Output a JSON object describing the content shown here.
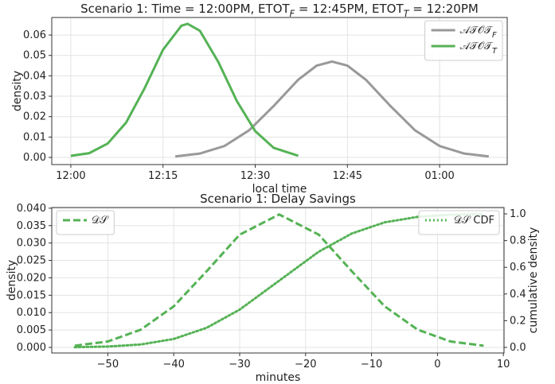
{
  "chart_data": [
    {
      "type": "line",
      "title": "Scenario 1: Time = 12:00PM, ETOT_F = 12:45PM, ETOT_T = 12:20PM",
      "xlabel": "local time",
      "ylabel": "density",
      "xlim": [
        -3.1,
        71
      ],
      "ylim": [
        -0.0035,
        0.0686
      ],
      "xticks": [
        {
          "value": 0,
          "label": "12:00"
        },
        {
          "value": 15,
          "label": "12:15"
        },
        {
          "value": 30,
          "label": "12:30"
        },
        {
          "value": 45,
          "label": "12:45"
        },
        {
          "value": 60,
          "label": "01:00"
        }
      ],
      "yticks": [
        {
          "value": 0,
          "label": "0.00"
        },
        0.01,
        0.02,
        0.03,
        0.04,
        0.05,
        0.06
      ],
      "grid": true,
      "legend": "upper right",
      "series": [
        {
          "name": "𝒜𝒯𝒪𝒯_F",
          "color": "#999999",
          "linestyle": "solid",
          "x": [
            17,
            21,
            25,
            29,
            33,
            37,
            40,
            42.5,
            45,
            48,
            52,
            56,
            60,
            64,
            68
          ],
          "values": [
            0.0005,
            0.0019,
            0.0056,
            0.0133,
            0.0252,
            0.0381,
            0.045,
            0.047,
            0.045,
            0.0381,
            0.0252,
            0.0133,
            0.0056,
            0.0019,
            0.0005
          ]
        },
        {
          "name": "𝒜𝒯𝒪𝒯_T",
          "color": "#55b255",
          "linestyle": "solid",
          "x": [
            0,
            3,
            6,
            9,
            12,
            15,
            18,
            19,
            21,
            24,
            27,
            30,
            33,
            37
          ],
          "values": [
            0.0008,
            0.0021,
            0.0068,
            0.0171,
            0.0339,
            0.0528,
            0.0646,
            0.0655,
            0.0621,
            0.0468,
            0.0277,
            0.0129,
            0.0047,
            0.0008
          ]
        }
      ]
    },
    {
      "type": "line",
      "title": "Scenario 1: Delay Savings",
      "xlabel": "minutes",
      "ylabel": "density",
      "y2label": "cumulative density",
      "xlim": [
        -58.5,
        10.1
      ],
      "ylim": [
        -0.0016,
        0.0402
      ],
      "y2lim": [
        -0.042,
        1.048
      ],
      "xticks": [
        {
          "value": -50,
          "label": "−50"
        },
        {
          "value": -40,
          "label": "−40"
        },
        {
          "value": -30,
          "label": "−30"
        },
        {
          "value": -20,
          "label": "−20"
        },
        {
          "value": -10,
          "label": "−10"
        },
        0,
        10
      ],
      "yticks": [
        {
          "value": 0,
          "label": "0.000"
        },
        {
          "value": 0.005,
          "label": "0.005"
        },
        {
          "value": 0.01,
          "label": "0.010"
        },
        {
          "value": 0.015,
          "label": "0.015"
        },
        {
          "value": 0.02,
          "label": "0.020"
        },
        {
          "value": 0.025,
          "label": "0.025"
        },
        {
          "value": 0.03,
          "label": "0.030"
        },
        {
          "value": 0.035,
          "label": "0.035"
        },
        {
          "value": 0.04,
          "label": "0.040"
        }
      ],
      "y2ticks": [
        {
          "value": 0,
          "label": "0.0"
        },
        0.2,
        0.4,
        0.6,
        0.8,
        {
          "value": 1,
          "label": "1.0"
        }
      ],
      "grid": true,
      "x": [
        -55,
        -50,
        -45,
        -40,
        -35,
        -30,
        -24,
        -18,
        -13,
        -8,
        -3,
        2,
        7
      ],
      "series": [
        {
          "name": "𝒟𝒮",
          "color": "#55b255",
          "linestyle": "dashed",
          "legend": "upper left",
          "values": [
            0.0005,
            0.0017,
            0.0051,
            0.0118,
            0.0219,
            0.0324,
            0.0382,
            0.0324,
            0.0219,
            0.0118,
            0.0051,
            0.0017,
            0.0005
          ]
        },
        {
          "name": "𝒟𝒮 CDF",
          "color": "#55b255",
          "linestyle": "dotted",
          "legend": "upper right",
          "axis": "y2",
          "values": [
            0.0015,
            0.0064,
            0.022,
            0.063,
            0.147,
            0.283,
            0.5,
            0.717,
            0.853,
            0.937,
            0.978,
            0.994,
            0.9985
          ]
        }
      ]
    }
  ]
}
